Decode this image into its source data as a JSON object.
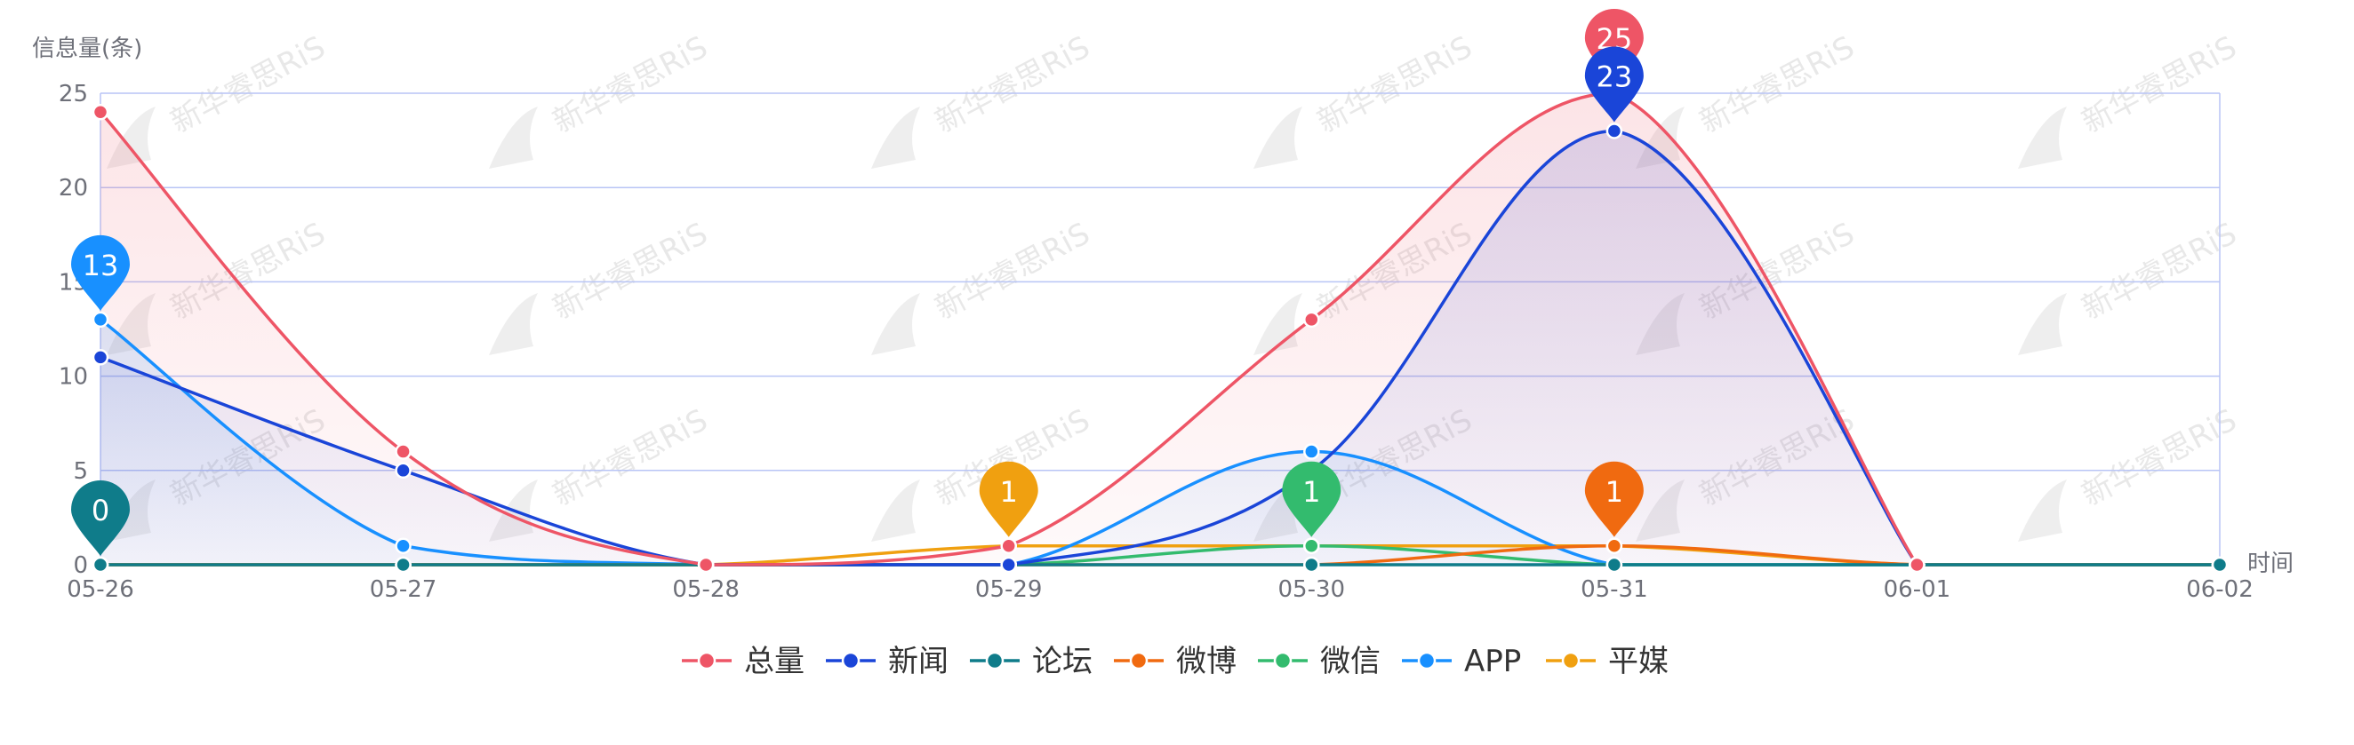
{
  "chart_data": {
    "type": "line",
    "ylabel": "信息量(条)",
    "xlabel": "时间",
    "categories": [
      "05-26",
      "05-27",
      "05-28",
      "05-29",
      "05-30",
      "05-31",
      "06-01",
      "06-02"
    ],
    "ylim": [
      0,
      25
    ],
    "yticks": [
      0,
      5,
      10,
      15,
      20,
      25
    ],
    "grid": true,
    "legend_position": "bottom",
    "smooth": true,
    "series": [
      {
        "name": "总量",
        "color": "#ee5566",
        "values": [
          24,
          6,
          0,
          1,
          13,
          25,
          0,
          null
        ],
        "area": true,
        "max_marker_index": 5,
        "max_marker_value": "25"
      },
      {
        "name": "新闻",
        "color": "#1a45d8",
        "values": [
          11,
          5,
          0,
          0,
          5,
          23,
          0,
          null
        ],
        "area": true,
        "max_marker_index": 5,
        "max_marker_value": "23"
      },
      {
        "name": "论坛",
        "color": "#0f7c8a",
        "values": [
          0,
          0,
          0,
          0,
          0,
          0,
          0,
          0
        ],
        "area": false,
        "max_marker_index": 0,
        "max_marker_value": "0"
      },
      {
        "name": "微博",
        "color": "#f06a10",
        "values": [
          0,
          0,
          0,
          0,
          0,
          1,
          0,
          0
        ],
        "area": false,
        "max_marker_index": 5,
        "max_marker_value": "1"
      },
      {
        "name": "微信",
        "color": "#33bb6e",
        "values": [
          0,
          0,
          0,
          0,
          1,
          0,
          0,
          0
        ],
        "area": false,
        "max_marker_index": 4,
        "max_marker_value": "1"
      },
      {
        "name": "APP",
        "color": "#1890ff",
        "values": [
          13,
          1,
          0,
          0,
          6,
          0,
          0,
          0
        ],
        "area": true,
        "max_marker_index": 0,
        "max_marker_value": "13"
      },
      {
        "name": "平媒",
        "color": "#f0a010",
        "values": [
          0,
          0,
          0,
          1,
          1,
          1,
          0,
          0
        ],
        "area": false,
        "max_marker_index": 3,
        "max_marker_value": "1"
      }
    ]
  },
  "watermark": {
    "text": "新华睿思RiS"
  }
}
